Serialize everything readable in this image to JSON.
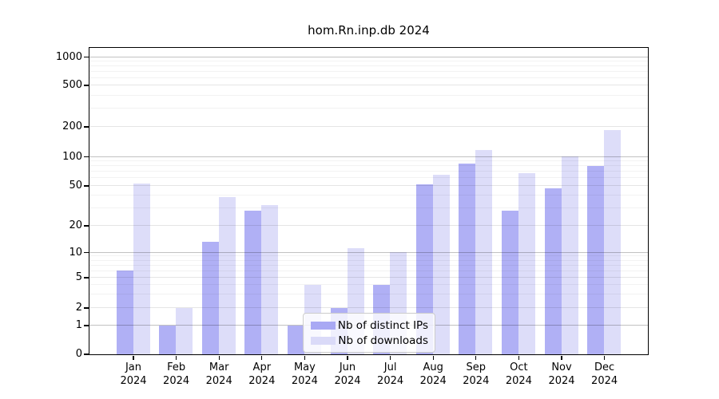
{
  "chart_data": {
    "type": "bar",
    "title": "hom.Rn.inp.db 2024",
    "categories": [
      "Jan 2024",
      "Feb 2024",
      "Mar 2024",
      "Apr 2024",
      "May 2024",
      "Jun 2024",
      "Jul 2024",
      "Aug 2024",
      "Sep 2024",
      "Oct 2024",
      "Nov 2024",
      "Dec 2024"
    ],
    "series": [
      {
        "name": "Nb of distinct IPs",
        "color": "#a9a9f4",
        "values": [
          6,
          1,
          13,
          28,
          1,
          2,
          4,
          51,
          85,
          28,
          47,
          80
        ]
      },
      {
        "name": "Nb of downloads",
        "color": "#dadaf8",
        "values": [
          52,
          2,
          38,
          32,
          4,
          11,
          10,
          65,
          115,
          67,
          100,
          185
        ]
      }
    ],
    "yscale": "log-like-with-zero",
    "yticks": [
      0,
      1,
      2,
      5,
      10,
      20,
      50,
      100,
      200,
      500,
      1000
    ],
    "ylim": [
      0,
      1000
    ],
    "grid": true,
    "legend_position": "lower center",
    "colors": {
      "axis": "#000000",
      "grid_major": "#c3c3c3",
      "grid_minor": "#f2f2f2",
      "background": "#ffffff"
    }
  }
}
